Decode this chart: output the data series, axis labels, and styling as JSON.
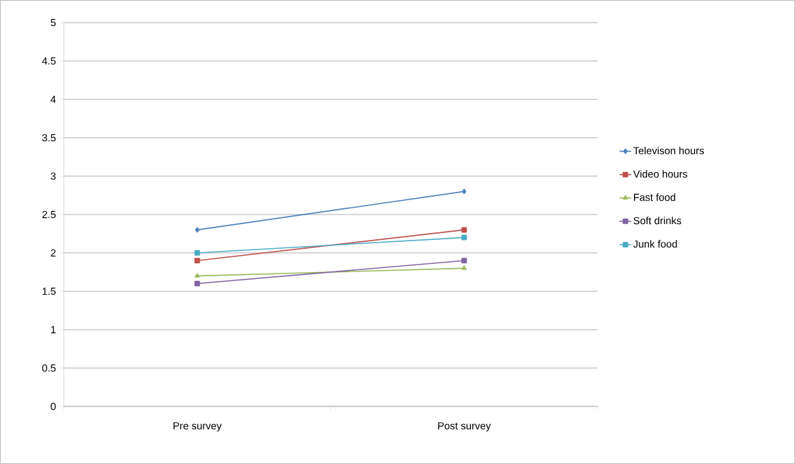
{
  "chart_data": {
    "type": "line",
    "categories": [
      "Pre survey",
      "Post survey"
    ],
    "series": [
      {
        "name": "Televison hours",
        "color": "#4f81bd",
        "marker": "diamond",
        "values": [
          2.3,
          2.8
        ]
      },
      {
        "name": "Video hours",
        "color": "#c0504d",
        "marker": "square",
        "values": [
          1.9,
          2.3
        ]
      },
      {
        "name": "Fast food",
        "color": "#9bbb59",
        "marker": "triangle",
        "values": [
          1.7,
          1.8
        ]
      },
      {
        "name": "Soft drinks",
        "color": "#8064a2",
        "marker": "square",
        "values": [
          1.6,
          1.9
        ]
      },
      {
        "name": "Junk food",
        "color": "#4bacc6",
        "marker": "square",
        "values": [
          2.0,
          2.2
        ]
      }
    ],
    "ylim": [
      0,
      5
    ],
    "yticks": [
      0,
      0.5,
      1,
      1.5,
      2,
      2.5,
      3,
      3.5,
      4,
      4.5,
      5
    ],
    "grid": "y",
    "legend": "right",
    "line_style": "solid"
  }
}
